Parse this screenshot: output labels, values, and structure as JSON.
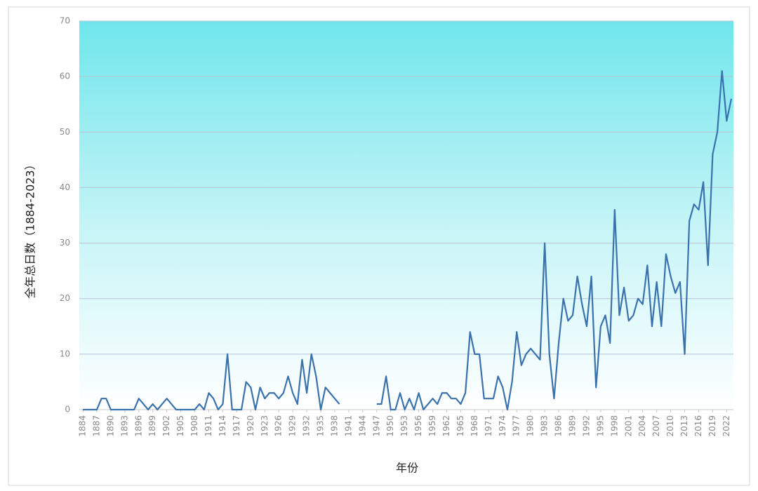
{
  "chart_data": {
    "type": "line",
    "x_label": "年份",
    "y_label": "全年总日数（1884-2023）",
    "x": [
      1884,
      1885,
      1886,
      1887,
      1888,
      1889,
      1890,
      1891,
      1892,
      1893,
      1894,
      1895,
      1896,
      1897,
      1898,
      1899,
      1900,
      1901,
      1902,
      1903,
      1904,
      1905,
      1906,
      1907,
      1908,
      1909,
      1910,
      1911,
      1912,
      1913,
      1914,
      1915,
      1916,
      1917,
      1918,
      1919,
      1920,
      1921,
      1922,
      1923,
      1924,
      1925,
      1926,
      1927,
      1928,
      1929,
      1930,
      1931,
      1932,
      1933,
      1934,
      1935,
      1936,
      1937,
      1938,
      1939,
      1940,
      1941,
      1942,
      1943,
      1944,
      1945,
      1946,
      1947,
      1948,
      1949,
      1950,
      1951,
      1952,
      1953,
      1954,
      1955,
      1956,
      1957,
      1958,
      1959,
      1960,
      1961,
      1962,
      1963,
      1964,
      1965,
      1966,
      1967,
      1968,
      1969,
      1970,
      1971,
      1972,
      1973,
      1974,
      1975,
      1976,
      1977,
      1978,
      1979,
      1980,
      1981,
      1982,
      1983,
      1984,
      1985,
      1986,
      1987,
      1988,
      1989,
      1990,
      1991,
      1992,
      1993,
      1994,
      1995,
      1996,
      1997,
      1998,
      1999,
      2000,
      2001,
      2002,
      2003,
      2004,
      2005,
      2006,
      2007,
      2008,
      2009,
      2010,
      2011,
      2012,
      2013,
      2014,
      2015,
      2016,
      2017,
      2018,
      2019,
      2020,
      2021,
      2022,
      2023
    ],
    "series": [
      {
        "color": "#3a72ad",
        "values": [
          0,
          0,
          0,
          0,
          2,
          2,
          0,
          0,
          0,
          0,
          0,
          0,
          2,
          1,
          0,
          1,
          0,
          1,
          2,
          1,
          0,
          0,
          0,
          0,
          0,
          1,
          0,
          3,
          2,
          0,
          1,
          10,
          0,
          0,
          0,
          5,
          4,
          0,
          4,
          2,
          3,
          3,
          2,
          3,
          6,
          3,
          1,
          9,
          3,
          10,
          6,
          0,
          4,
          3,
          2,
          1,
          null,
          null,
          null,
          null,
          null,
          null,
          null,
          1,
          1,
          6,
          0,
          0,
          3,
          0,
          2,
          0,
          3,
          0,
          1,
          2,
          1,
          3,
          3,
          2,
          2,
          1,
          3,
          14,
          10,
          10,
          2,
          2,
          2,
          6,
          4,
          0,
          5,
          14,
          8,
          10,
          11,
          10,
          9,
          30,
          10,
          2,
          12,
          20,
          16,
          17,
          24,
          19,
          15,
          24,
          4,
          15,
          17,
          12,
          36,
          17,
          22,
          16,
          17,
          20,
          19,
          26,
          15,
          23,
          15,
          28,
          24,
          21,
          23,
          10,
          34,
          37,
          36,
          41,
          26,
          46,
          50,
          61,
          52,
          56
        ]
      }
    ],
    "xlim": [
      1884,
      2023
    ],
    "xticks": [
      1884,
      1887,
      1890,
      1893,
      1896,
      1899,
      1902,
      1905,
      1908,
      1911,
      1914,
      1917,
      1920,
      1923,
      1926,
      1929,
      1932,
      1935,
      1938,
      1941,
      1944,
      1947,
      1950,
      1953,
      1956,
      1959,
      1962,
      1965,
      1968,
      1971,
      1974,
      1977,
      1980,
      1983,
      1986,
      1989,
      1992,
      1995,
      1998,
      2001,
      2004,
      2007,
      2010,
      2013,
      2016,
      2019,
      2022
    ],
    "ylim": [
      0,
      70
    ],
    "yticks": [
      0,
      10,
      20,
      30,
      40,
      50,
      60,
      70
    ],
    "grid": true
  }
}
